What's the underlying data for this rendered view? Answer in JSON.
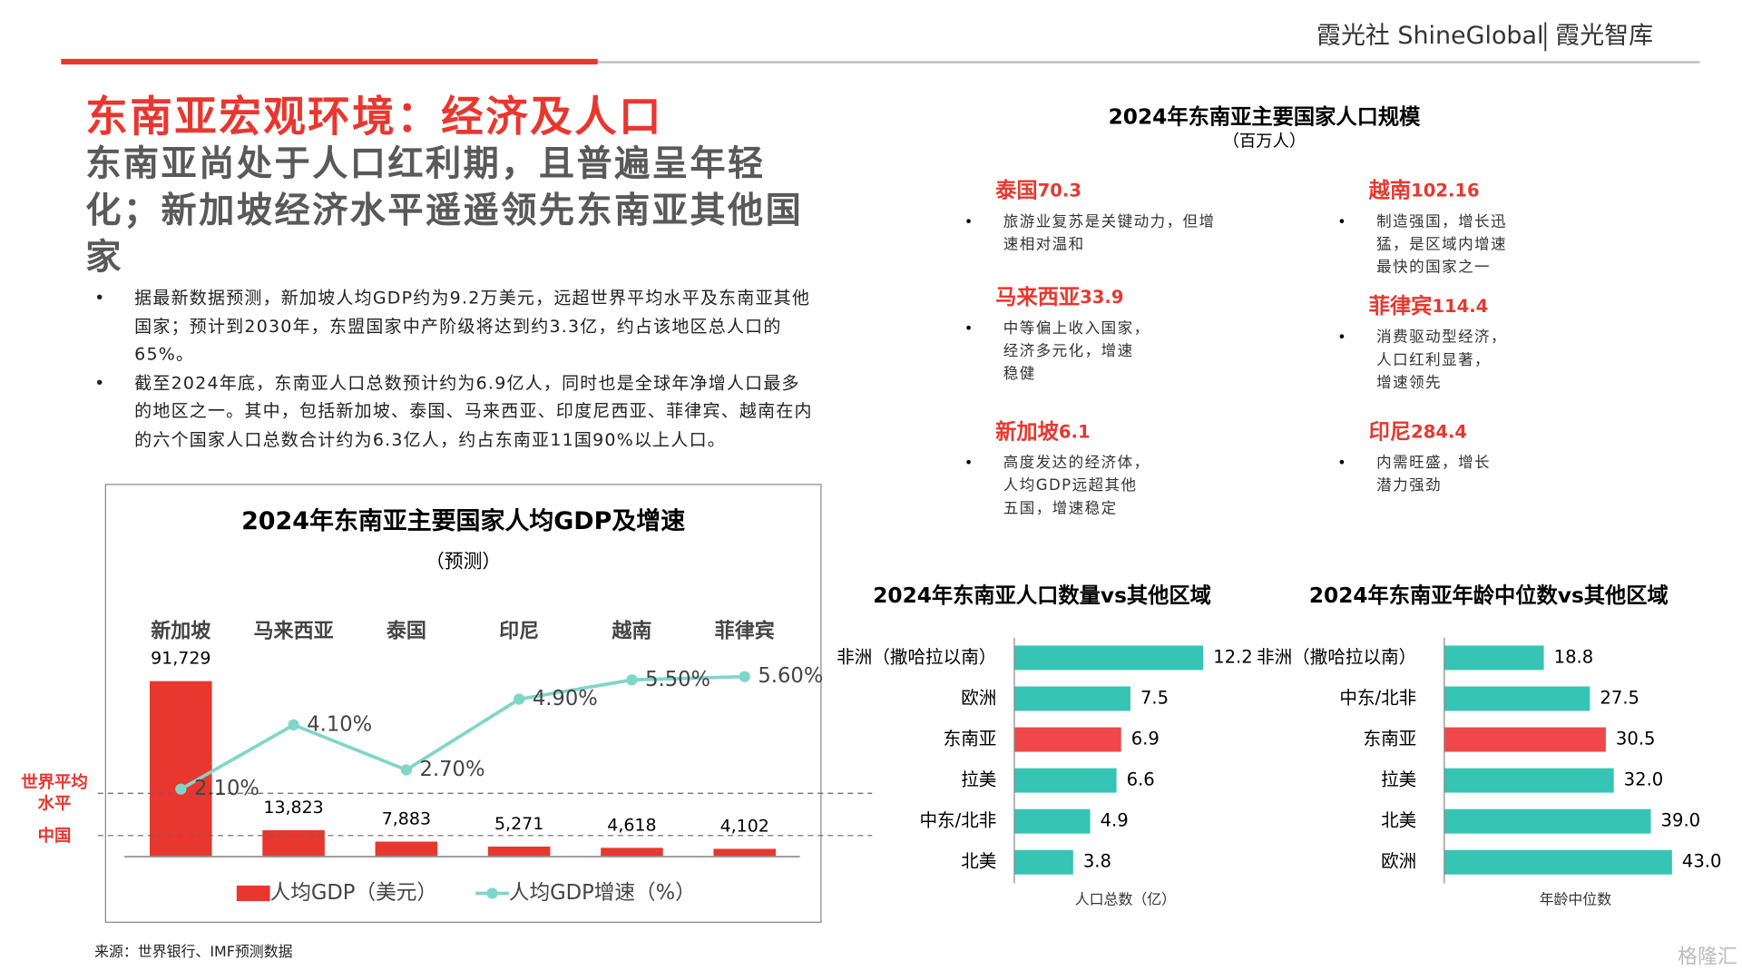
{
  "header": {
    "brand": "霞光社 ShineGlobal",
    "brand2": "霞光智库"
  },
  "title": "东南亚宏观环境：经济及人口",
  "subtitle": "东南亚尚处于人口红利期，且普遍呈年轻化；新加坡经济水平遥遥领先东南亚其他国家",
  "bullets": [
    "据最新数据预测，新加坡人均GDP约为9.2万美元，远超世界平均水平及东南亚其他国家；预计到2030年，东盟国家中产阶级将达到约3.3亿，约占该地区总人口的65%。",
    "截至2024年底，东南亚人口总数预计约为6.9亿人，同时也是全球年净增人口最多的地区之一。其中，包括新加坡、泰国、马来西亚、印度尼西亚、菲律宾、越南在内的六个国家人口总数合计约为6.3亿人，约占东南亚11国90%以上人口。"
  ],
  "source": "来源：世界银行、IMF预测数据",
  "watermark": "格隆汇",
  "population_panel": {
    "title": "2024年东南亚主要国家人口规模",
    "unit": "（百万人）",
    "countries": [
      {
        "name": "泰国",
        "value": 70.3,
        "desc": [
          "旅游业复苏是关键动力，但增",
          "速相对温和"
        ]
      },
      {
        "name": "越南",
        "value": 102.16,
        "desc": [
          "制造强国，增长迅",
          "猛，是区域内增速",
          "最快的国家之一"
        ]
      },
      {
        "name": "马来西亚",
        "value": 33.9,
        "desc": [
          "中等偏上收入国家，",
          "经济多元化，增速",
          "稳健"
        ]
      },
      {
        "name": "菲律宾",
        "value": 114.4,
        "desc": [
          "消费驱动型经济，",
          "人口红利显著，",
          "增速领先"
        ]
      },
      {
        "name": "新加坡",
        "value": 6.1,
        "desc": [
          "高度发达的经济体，",
          "人均GDP远超其他",
          "五国，增速稳定"
        ]
      },
      {
        "name": "印尼",
        "value": 284.4,
        "desc": [
          "内需旺盛，增长",
          "潜力强劲"
        ]
      }
    ]
  },
  "chart_data": [
    {
      "type": "bar_line",
      "title": "2024年东南亚主要国家人均GDP及增速",
      "subtitle": "（预测）",
      "categories": [
        "新加坡",
        "马来西亚",
        "泰国",
        "印尼",
        "越南",
        "菲律宾"
      ],
      "series": [
        {
          "name": "人均GDP（美元）",
          "color": "#e8372f",
          "values": [
            91729,
            13823,
            7883,
            5271,
            4618,
            4102
          ],
          "value_labels": [
            "91,729",
            "13,823",
            "7,883",
            "5,271",
            "4,618",
            "4,102"
          ]
        },
        {
          "name": "人均GDP增速（%）",
          "color": "#7fd6c8",
          "axis": "y2",
          "values": [
            2.1,
            4.1,
            2.7,
            4.9,
            5.5,
            5.6
          ],
          "value_labels": [
            "2.10%",
            "4.10%",
            "2.70%",
            "4.90%",
            "5.50%",
            "5.60%"
          ]
        }
      ],
      "annotations": [
        "世界平均水平",
        "中国"
      ]
    },
    {
      "type": "hbar",
      "title": "2024年东南亚人口数量vs其他区域",
      "xlabel": "人口总数（亿）",
      "categories": [
        "非洲（撒哈拉以南）",
        "欧洲",
        "东南亚",
        "拉美",
        "中东/北非",
        "北美"
      ],
      "values": [
        12.2,
        7.5,
        6.9,
        6.6,
        4.9,
        3.8
      ],
      "colors": [
        "#36c4b4",
        "#36c4b4",
        "#f0474a",
        "#36c4b4",
        "#36c4b4",
        "#36c4b4"
      ]
    },
    {
      "type": "hbar",
      "title": "2024年东南亚年龄中位数vs其他区域",
      "xlabel": "年龄中位数",
      "categories": [
        "非洲（撒哈拉以南）",
        "中东/北非",
        "东南亚",
        "拉美",
        "北美",
        "欧洲"
      ],
      "values": [
        18.8,
        27.5,
        30.5,
        32,
        39,
        43
      ],
      "value_labels": [
        "18.8",
        "27.5",
        "30.5",
        "32.0",
        "39.0",
        "43.0"
      ],
      "colors": [
        "#36c4b4",
        "#36c4b4",
        "#f0474a",
        "#36c4b4",
        "#36c4b4",
        "#36c4b4"
      ]
    }
  ]
}
